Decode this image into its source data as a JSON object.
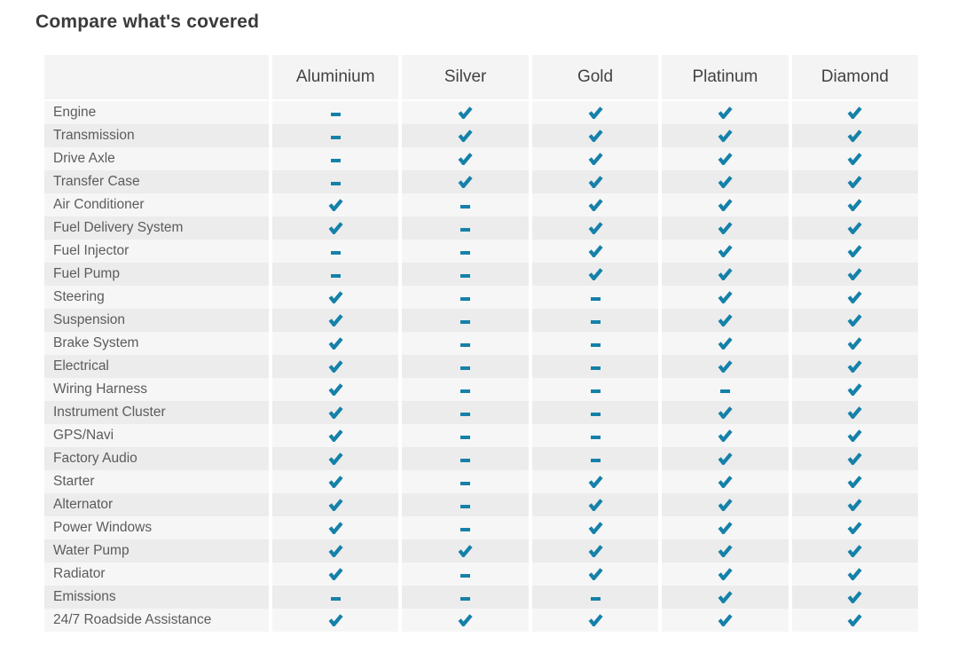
{
  "page": {
    "title": "Compare what's covered"
  },
  "theme": {
    "accent_color": "#1581a9"
  },
  "table": {
    "columns": [
      "Aluminium",
      "Silver",
      "Gold",
      "Platinum",
      "Diamond"
    ],
    "icons": {
      "covered": "check-icon",
      "not_covered": "dash-icon"
    },
    "rows": [
      {
        "label": "Engine",
        "covered": [
          false,
          true,
          true,
          true,
          true
        ]
      },
      {
        "label": "Transmission",
        "covered": [
          false,
          true,
          true,
          true,
          true
        ]
      },
      {
        "label": "Drive Axle",
        "covered": [
          false,
          true,
          true,
          true,
          true
        ]
      },
      {
        "label": "Transfer Case",
        "covered": [
          false,
          true,
          true,
          true,
          true
        ]
      },
      {
        "label": "Air Conditioner",
        "covered": [
          true,
          false,
          true,
          true,
          true
        ]
      },
      {
        "label": "Fuel Delivery System",
        "covered": [
          true,
          false,
          true,
          true,
          true
        ]
      },
      {
        "label": "Fuel Injector",
        "covered": [
          false,
          false,
          true,
          true,
          true
        ]
      },
      {
        "label": "Fuel Pump",
        "covered": [
          false,
          false,
          true,
          true,
          true
        ]
      },
      {
        "label": "Steering",
        "covered": [
          true,
          false,
          false,
          true,
          true
        ]
      },
      {
        "label": "Suspension",
        "covered": [
          true,
          false,
          false,
          true,
          true
        ]
      },
      {
        "label": "Brake System",
        "covered": [
          true,
          false,
          false,
          true,
          true
        ]
      },
      {
        "label": "Electrical",
        "covered": [
          true,
          false,
          false,
          true,
          true
        ]
      },
      {
        "label": "Wiring Harness",
        "covered": [
          true,
          false,
          false,
          false,
          true
        ]
      },
      {
        "label": "Instrument Cluster",
        "covered": [
          true,
          false,
          false,
          true,
          true
        ]
      },
      {
        "label": "GPS/Navi",
        "covered": [
          true,
          false,
          false,
          true,
          true
        ]
      },
      {
        "label": "Factory Audio",
        "covered": [
          true,
          false,
          false,
          true,
          true
        ]
      },
      {
        "label": "Starter",
        "covered": [
          true,
          false,
          true,
          true,
          true
        ]
      },
      {
        "label": "Alternator",
        "covered": [
          true,
          false,
          true,
          true,
          true
        ]
      },
      {
        "label": "Power Windows",
        "covered": [
          true,
          false,
          true,
          true,
          true
        ]
      },
      {
        "label": "Water Pump",
        "covered": [
          true,
          true,
          true,
          true,
          true
        ]
      },
      {
        "label": "Radiator",
        "covered": [
          true,
          false,
          true,
          true,
          true
        ]
      },
      {
        "label": "Emissions",
        "covered": [
          false,
          false,
          false,
          true,
          true
        ]
      },
      {
        "label": "24/7 Roadside Assistance",
        "covered": [
          true,
          true,
          true,
          true,
          true
        ]
      }
    ]
  }
}
